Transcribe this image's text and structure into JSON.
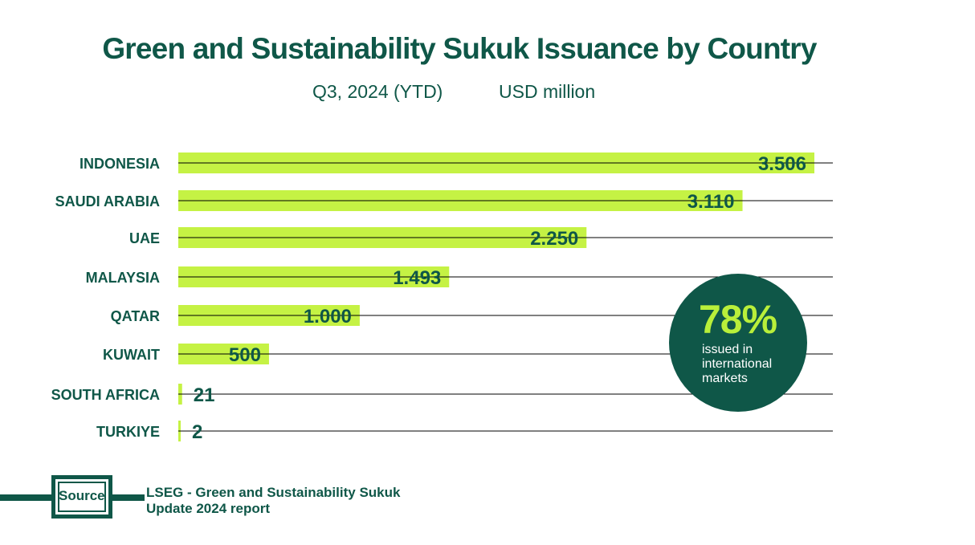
{
  "title": "Green and Sustainability Sukuk Issuance by Country",
  "subtitle_period": "Q3, 2024 (YTD)",
  "subtitle_unit": "USD million",
  "colors": {
    "bar": "#c5f244",
    "text": "#0f5748",
    "badge_bg": "#0f5748",
    "badge_accent": "#b9ef3a",
    "gridline": "#000000"
  },
  "chart_data": {
    "type": "bar",
    "orientation": "horizontal",
    "categories": [
      "INDONESIA",
      "SAUDI ARABIA",
      "UAE",
      "MALAYSIA",
      "QATAR",
      "KUWAIT",
      "SOUTH AFRICA",
      "TURKIYE"
    ],
    "values": [
      3506,
      3110,
      2250,
      1493,
      1000,
      500,
      21,
      2
    ],
    "value_labels": [
      "3.506",
      "3.110",
      "2.250",
      "1.493",
      "1.000",
      "500",
      "21",
      "2"
    ],
    "xlim": [
      0,
      3600
    ],
    "grid": true
  },
  "badge": {
    "percent": "78%",
    "text_lines": [
      "issued in",
      "international",
      "markets"
    ]
  },
  "source": {
    "label": "Source",
    "text_lines": [
      "LSEG - Green and Sustainability Sukuk",
      "Update 2024 report"
    ]
  }
}
